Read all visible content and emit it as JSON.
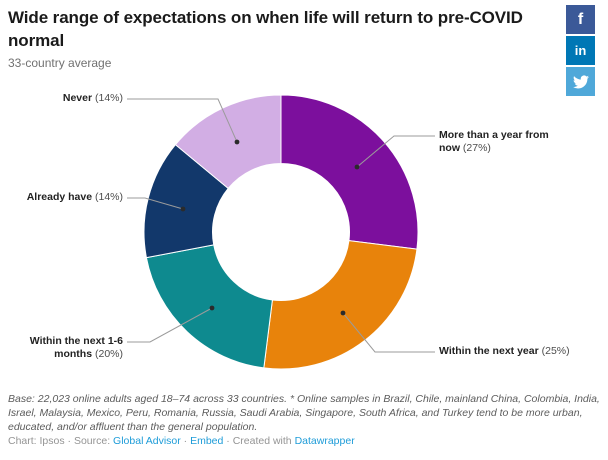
{
  "header": {
    "title": "Wide range of expectations on when life will return to pre-COVID normal",
    "subtitle": "33-country average"
  },
  "share": {
    "facebook": {
      "label": "f",
      "color": "#3b5998"
    },
    "linkedin": {
      "label": "in",
      "color": "#0077b5"
    },
    "twitter": {
      "color": "#4fa8d9"
    }
  },
  "chart_data": {
    "type": "pie",
    "variant": "donut",
    "title": "Wide range of expectations on when life will return to pre-COVID normal",
    "subtitle": "33-country average",
    "start_angle_deg": 0,
    "direction": "clockwise",
    "inner_radius_ratio": 0.5,
    "legend": "none (direct callout labels)",
    "segments": [
      {
        "label": "More than a year from now",
        "value": 27,
        "value_display": "(27%)",
        "color": "#7c0f9d"
      },
      {
        "label": "Within the next year",
        "value": 25,
        "value_display": "(25%)",
        "color": "#e8830b"
      },
      {
        "label": "Within the next 1-6 months",
        "value": 20,
        "value_display": "(20%)",
        "color": "#0e8a8f"
      },
      {
        "label": "Already have",
        "value": 14,
        "value_display": "(14%)",
        "color": "#12386b"
      },
      {
        "label": "Never",
        "value": 14,
        "value_display": "(14%)",
        "color": "#d2aee4"
      }
    ],
    "callouts": {
      "never": {
        "name": "Never",
        "value_display": "(14%)"
      },
      "already": {
        "name": "Already have",
        "value_display": "(14%)"
      },
      "more": {
        "name": "More than a year from now",
        "value_display": "(27%)"
      },
      "year": {
        "name": "Within the next year",
        "value_display": "(25%)"
      },
      "months": {
        "name": "Within the next 1-6 months",
        "value_display": "(20%)"
      }
    }
  },
  "footer": {
    "note": "Base: 22,023 online adults aged 18–74 across 33 countries. * Online samples in Brazil, Chile, mainland China, Colombia, India, Israel, Malaysia, Mexico, Peru, Romania, Russia, Saudi Arabia, Singapore, South Africa, and Turkey tend to be more urban, educated, and/or affluent than the general population.",
    "attribution": {
      "prefix": "Chart: Ipsos · Source: ",
      "source_link": "Global Advisor",
      "sep1": " · ",
      "embed_link": "Embed",
      "sep2": " · Created with ",
      "creator_link": "Datawrapper"
    }
  }
}
